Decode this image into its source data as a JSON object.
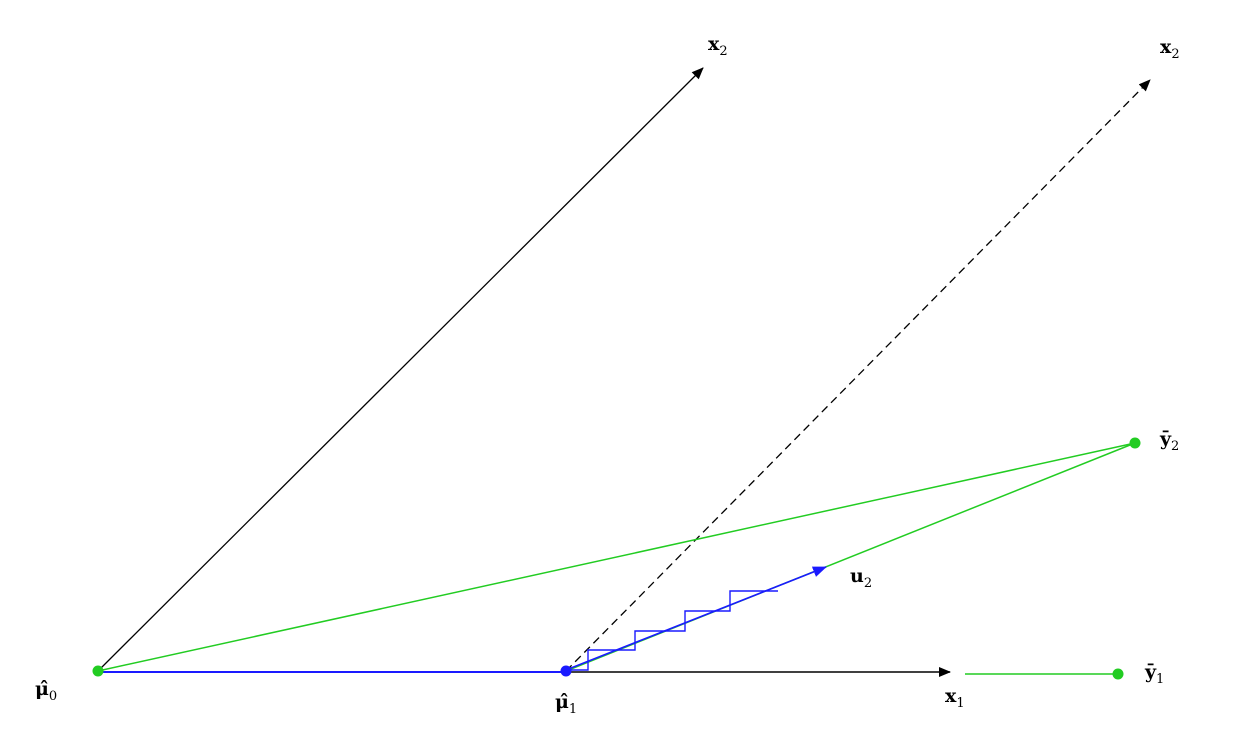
{
  "labels": {
    "x2_top": {
      "base": "x",
      "sub": "2"
    },
    "x2_dashed": {
      "base": "x",
      "sub": "2"
    },
    "y2": {
      "base": "ȳ",
      "sub": "2"
    },
    "u2": {
      "base": "u",
      "sub": "2"
    },
    "mu0": {
      "base": "μ̂",
      "sub": "0"
    },
    "mu1": {
      "base": "μ̂",
      "sub": "1"
    },
    "x1": {
      "base": "x",
      "sub": "1"
    },
    "y1": {
      "base": "ȳ",
      "sub": "1"
    }
  },
  "colors": {
    "axes": "#000000",
    "green": "#22cc22",
    "blue": "#1a1aff"
  }
}
